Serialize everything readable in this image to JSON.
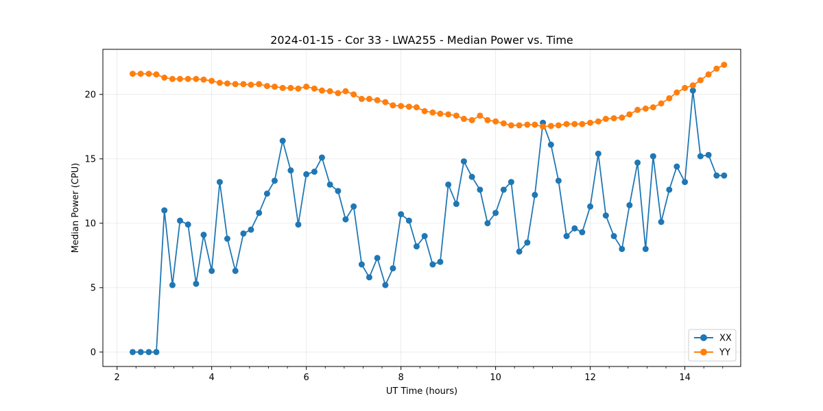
{
  "chart_data": {
    "type": "line",
    "title": "2024-01-15 - Cor 33 - LWA255 - Median Power vs. Time",
    "xlabel": "UT Time (hours)",
    "ylabel": "Median Power (CPU)",
    "xlim": [
      1.7,
      15.18
    ],
    "ylim": [
      -1.12,
      23.5
    ],
    "xticks": [
      2,
      4,
      6,
      8,
      10,
      12,
      14
    ],
    "yticks": [
      0,
      5,
      10,
      15,
      20
    ],
    "xtick_labels": [
      "2",
      "4",
      "6",
      "8",
      "10",
      "12",
      "14"
    ],
    "ytick_labels": [
      "0",
      "5",
      "10",
      "15",
      "20"
    ],
    "grid": true,
    "legend_position": "lower-right",
    "x": [
      2.33,
      2.5,
      2.67,
      2.83,
      3.0,
      3.17,
      3.33,
      3.5,
      3.67,
      3.83,
      4.0,
      4.17,
      4.33,
      4.5,
      4.67,
      4.83,
      5.0,
      5.17,
      5.33,
      5.5,
      5.67,
      5.83,
      6.0,
      6.17,
      6.33,
      6.5,
      6.67,
      6.83,
      7.0,
      7.17,
      7.33,
      7.5,
      7.67,
      7.83,
      8.0,
      8.17,
      8.33,
      8.5,
      8.67,
      8.83,
      9.0,
      9.17,
      9.33,
      9.5,
      9.67,
      9.83,
      10.0,
      10.17,
      10.33,
      10.5,
      10.67,
      10.83,
      11.0,
      11.17,
      11.33,
      11.5,
      11.67,
      11.83,
      12.0,
      12.17,
      12.33,
      12.5,
      12.67,
      12.83,
      13.0,
      13.17,
      13.33,
      13.5,
      13.67,
      13.83,
      14.0,
      14.17,
      14.33,
      14.5,
      14.67,
      14.83
    ],
    "series": [
      {
        "name": "XX",
        "color": "#1f77b4",
        "values": [
          0.0,
          0.0,
          0.0,
          0.0,
          11.0,
          5.2,
          10.2,
          9.9,
          5.3,
          9.1,
          6.3,
          13.2,
          8.8,
          6.3,
          9.2,
          9.5,
          10.8,
          12.3,
          13.3,
          16.4,
          14.1,
          9.9,
          13.8,
          14.0,
          15.1,
          13.0,
          12.5,
          10.3,
          11.3,
          6.8,
          5.8,
          7.3,
          5.2,
          6.5,
          10.7,
          10.2,
          8.2,
          9.0,
          6.8,
          7.0,
          13.0,
          11.5,
          14.8,
          13.6,
          12.6,
          10.0,
          10.8,
          12.6,
          13.2,
          7.8,
          8.5,
          12.2,
          17.8,
          16.1,
          13.3,
          9.0,
          9.6,
          9.3,
          11.3,
          15.4,
          10.6,
          9.0,
          8.0,
          11.4,
          14.7,
          8.0,
          15.2,
          10.1,
          12.6,
          14.4,
          13.2,
          20.3,
          15.2,
          15.3,
          13.7,
          13.7
        ]
      },
      {
        "name": "YY",
        "color": "#ff7f0e",
        "values": [
          21.6,
          21.6,
          21.6,
          21.55,
          21.3,
          21.2,
          21.2,
          21.2,
          21.2,
          21.15,
          21.05,
          20.9,
          20.85,
          20.8,
          20.8,
          20.75,
          20.8,
          20.65,
          20.6,
          20.5,
          20.5,
          20.45,
          20.6,
          20.45,
          20.3,
          20.25,
          20.1,
          20.25,
          20.0,
          19.65,
          19.65,
          19.55,
          19.4,
          19.15,
          19.1,
          19.05,
          19.0,
          18.7,
          18.6,
          18.5,
          18.45,
          18.35,
          18.1,
          18.0,
          18.35,
          18.0,
          17.9,
          17.75,
          17.6,
          17.6,
          17.65,
          17.65,
          17.5,
          17.55,
          17.6,
          17.7,
          17.7,
          17.7,
          17.8,
          17.9,
          18.1,
          18.15,
          18.2,
          18.45,
          18.8,
          18.9,
          19.0,
          19.3,
          19.7,
          20.15,
          20.5,
          20.7,
          21.1,
          21.55,
          22.0,
          22.3
        ]
      }
    ]
  }
}
